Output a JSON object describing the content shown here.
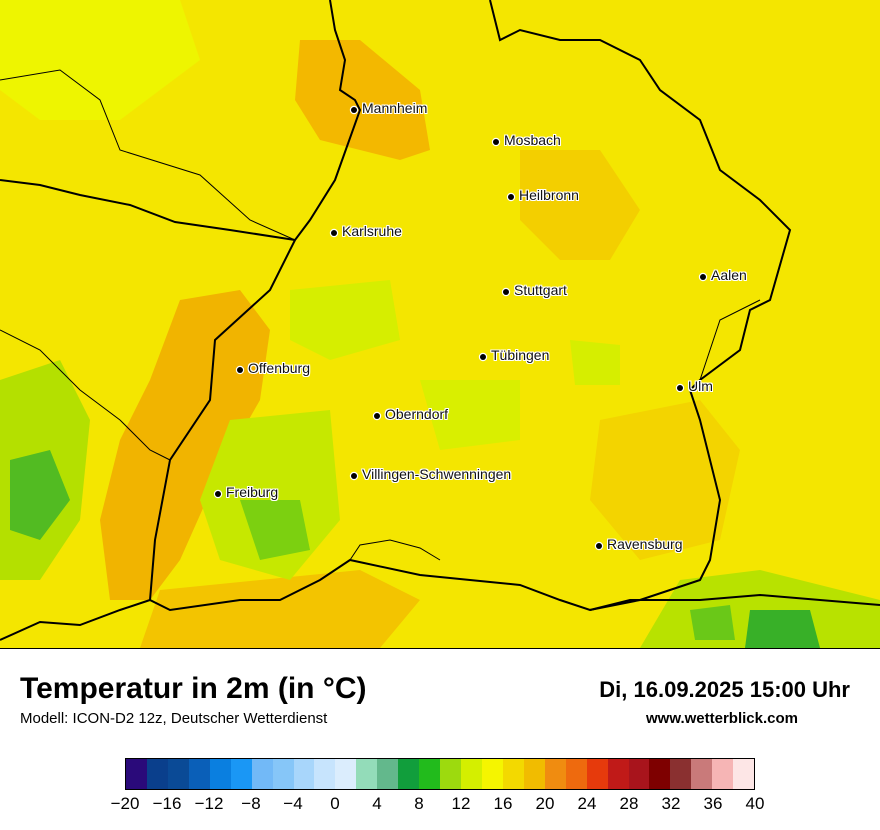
{
  "title": "Temperatur in 2m (in °C)",
  "model": "Modell: ICON-D2 12z, Deutscher Wetterdienst",
  "datetime": "Di, 16.09.2025 15:00 Uhr",
  "website": "www.wetterblick.com",
  "cities": [
    {
      "name": "Mannheim"
    },
    {
      "name": "Mosbach"
    },
    {
      "name": "Heilbronn"
    },
    {
      "name": "Karlsruhe"
    },
    {
      "name": "Aalen"
    },
    {
      "name": "Stuttgart"
    },
    {
      "name": "Offenburg"
    },
    {
      "name": "Tübingen"
    },
    {
      "name": "Ulm"
    },
    {
      "name": "Oberndorf"
    },
    {
      "name": "Villingen-Schwenningen"
    },
    {
      "name": "Freiburg"
    },
    {
      "name": "Ravensburg"
    }
  ],
  "legend": {
    "ticks": [
      "−20",
      "−16",
      "−12",
      "−8",
      "−4",
      "0",
      "4",
      "8",
      "12",
      "16",
      "20",
      "24",
      "28",
      "32",
      "36",
      "40"
    ],
    "colors": [
      "#2a0a7a",
      "#0a3f8c",
      "#0a4a96",
      "#0a5fb8",
      "#0a7fe0",
      "#1a97f5",
      "#72b9f7",
      "#86c6f8",
      "#a8d6fb",
      "#c7e4fd",
      "#dbedfd",
      "#93dcb9",
      "#63b88c",
      "#119e3c",
      "#22bb1c",
      "#9dda0e",
      "#d4ef00",
      "#f5f500",
      "#f3d900",
      "#f1bc00",
      "#f08c10",
      "#ee6a0e",
      "#e63a0c",
      "#c01a18",
      "#a8141c",
      "#7e0000",
      "#8a3030",
      "#c97a7a",
      "#f6b5b5",
      "#fde6e6"
    ]
  }
}
